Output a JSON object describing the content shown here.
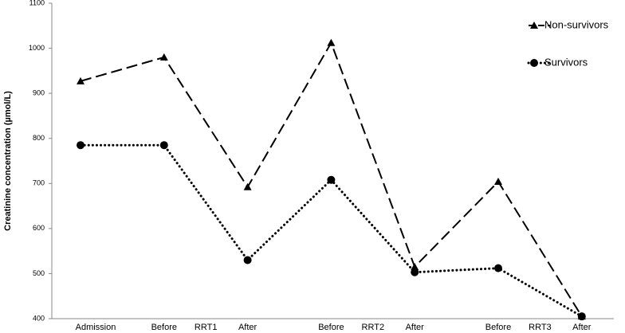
{
  "chart_data": {
    "type": "line",
    "y_label": "Creatinine concentration (µmol/L)",
    "categories": [
      "Admission",
      "Before",
      "After",
      "Before",
      "After",
      "Before",
      "After"
    ],
    "group_labels": [
      "RRT1",
      "RRT2",
      "RRT3"
    ],
    "series": [
      {
        "name": "Non-survivors",
        "color": "#000000",
        "marker": "triangle",
        "dash": "dashed",
        "values": [
          927,
          980,
          692,
          1012,
          515,
          704,
          405
        ]
      },
      {
        "name": "Survivors",
        "color": "#000000",
        "marker": "circle",
        "dash": "dotted",
        "values": [
          785,
          785,
          530,
          708,
          503,
          512,
          405
        ]
      }
    ],
    "ylim": [
      400,
      1100
    ],
    "yticks": [
      400,
      500,
      600,
      700,
      800,
      900,
      1000,
      1100
    ],
    "grid": false
  }
}
